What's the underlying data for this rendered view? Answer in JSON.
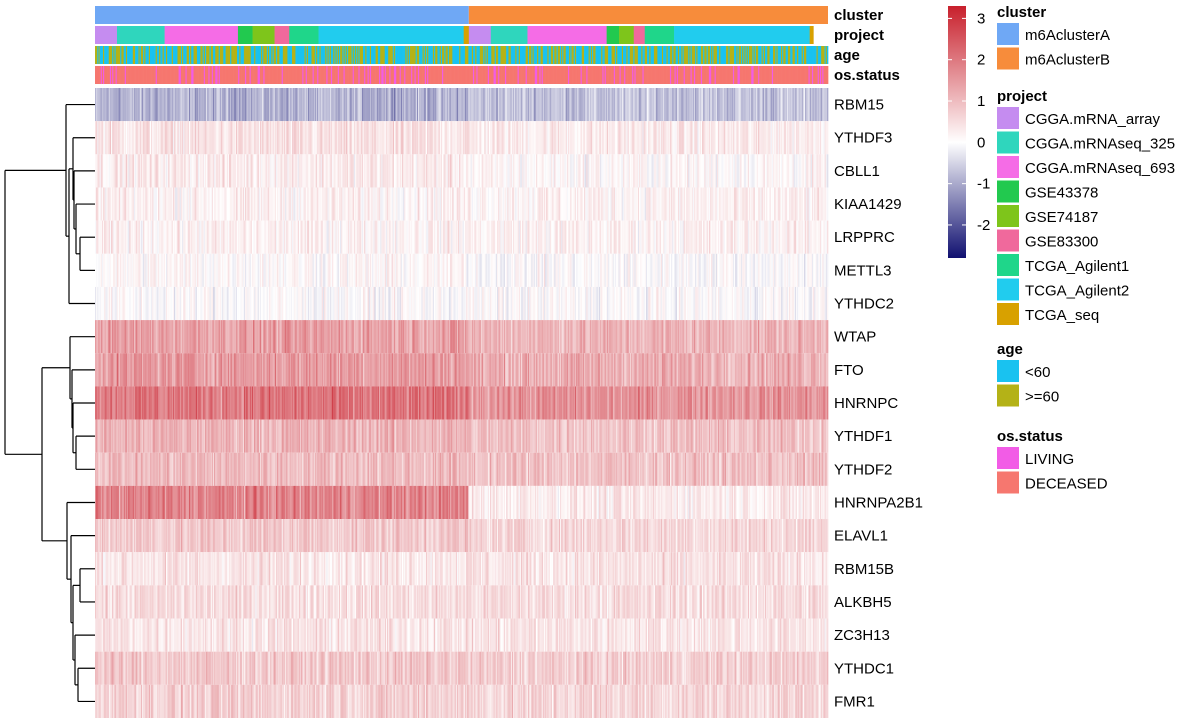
{
  "chart_data": {
    "type": "heatmap",
    "title": "",
    "xlabel": "",
    "ylabel": "",
    "genes": [
      "RBM15",
      "YTHDF3",
      "CBLL1",
      "KIAA1429",
      "LRPPRC",
      "METTL3",
      "YTHDC2",
      "WTAP",
      "FTO",
      "HNRNPC",
      "YTHDF1",
      "YTHDF2",
      "HNRNPA2B1",
      "ELAVL1",
      "RBM15B",
      "ALKBH5",
      "ZC3H13",
      "YTHDC1",
      "FMR1"
    ],
    "gene_mean_by_cluster": {
      "columns": [
        "m6AclusterA",
        "m6AclusterB"
      ],
      "values": [
        [
          -0.9,
          -0.7
        ],
        [
          0.4,
          0.3
        ],
        [
          0.3,
          0.1
        ],
        [
          0.2,
          0.2
        ],
        [
          0.2,
          0.2
        ],
        [
          0.1,
          0.0
        ],
        [
          0.0,
          0.0
        ],
        [
          1.4,
          1.1
        ],
        [
          1.5,
          1.2
        ],
        [
          2.0,
          1.6
        ],
        [
          1.1,
          0.9
        ],
        [
          1.0,
          0.9
        ],
        [
          1.8,
          0.3
        ],
        [
          0.8,
          0.6
        ],
        [
          0.4,
          0.4
        ],
        [
          0.5,
          0.5
        ],
        [
          0.4,
          0.4
        ],
        [
          0.8,
          0.7
        ],
        [
          0.7,
          0.6
        ]
      ]
    },
    "value_range": [
      -2.8,
      3.3
    ],
    "colorbar": {
      "ticks": [
        3,
        2,
        1,
        0,
        -1,
        -2
      ],
      "tick_labels": [
        "3",
        "2",
        "1",
        "0",
        "-1",
        "-2"
      ],
      "colors": {
        "low": "#101070",
        "mid": "#ffffff",
        "high": "#c8202c"
      }
    },
    "annotation_rows": [
      "cluster",
      "project",
      "age",
      "os.status"
    ],
    "cluster_segments": [
      {
        "label": "m6AclusterA",
        "fraction": 0.51
      },
      {
        "label": "m6AclusterB",
        "fraction": 0.49
      }
    ],
    "project_segments": [
      {
        "label": "CGGA.mRNA_array",
        "fraction": 0.03
      },
      {
        "label": "CGGA.mRNAseq_325",
        "fraction": 0.065
      },
      {
        "label": "CGGA.mRNAseq_693",
        "fraction": 0.1
      },
      {
        "label": "GSE43378",
        "fraction": 0.02
      },
      {
        "label": "GSE74187",
        "fraction": 0.03
      },
      {
        "label": "GSE83300",
        "fraction": 0.02
      },
      {
        "label": "TCGA_Agilent1",
        "fraction": 0.04
      },
      {
        "label": "TCGA_Agilent2",
        "fraction": 0.198
      },
      {
        "label": "TCGA_seq",
        "fraction": 0.007
      },
      {
        "label": "CGGA.mRNA_array",
        "fraction": 0.03
      },
      {
        "label": "CGGA.mRNAseq_325",
        "fraction": 0.05
      },
      {
        "label": "CGGA.mRNAseq_693",
        "fraction": 0.108
      },
      {
        "label": "GSE43378",
        "fraction": 0.017
      },
      {
        "label": "GSE74187",
        "fraction": 0.02
      },
      {
        "label": "GSE83300",
        "fraction": 0.015
      },
      {
        "label": "TCGA_Agilent1",
        "fraction": 0.04
      },
      {
        "label": "TCGA_Agilent2",
        "fraction": 0.185
      },
      {
        "label": "TCGA_seq",
        "fraction": 0.005
      }
    ],
    "legends": [
      {
        "title": "cluster",
        "entries": [
          {
            "label": "m6AclusterA",
            "color": "#6fa8f5"
          },
          {
            "label": "m6AclusterB",
            "color": "#f78c3b"
          }
        ]
      },
      {
        "title": "project",
        "entries": [
          {
            "label": "CGGA.mRNA_array",
            "color": "#c58cf0"
          },
          {
            "label": "CGGA.mRNAseq_325",
            "color": "#2fd6bd"
          },
          {
            "label": "CGGA.mRNAseq_693",
            "color": "#f56ce6"
          },
          {
            "label": "GSE43378",
            "color": "#22c94f"
          },
          {
            "label": "GSE74187",
            "color": "#7ec51b"
          },
          {
            "label": "GSE83300",
            "color": "#f0699c"
          },
          {
            "label": "TCGA_Agilent1",
            "color": "#1fd68a"
          },
          {
            "label": "TCGA_Agilent2",
            "color": "#21ccee"
          },
          {
            "label": "TCGA_seq",
            "color": "#d8a100"
          }
        ]
      },
      {
        "title": "age",
        "entries": [
          {
            "label": "<60",
            "color": "#19c2f0"
          },
          {
            "label": ">=60",
            "color": "#b4b217"
          }
        ]
      },
      {
        "title": "os.status",
        "entries": [
          {
            "label": "LIVING",
            "color": "#f25ce6"
          },
          {
            "label": "DECEASED",
            "color": "#f6776f"
          }
        ]
      }
    ],
    "row_dendrogram": "hierarchical clustering of genes, shown on the left"
  }
}
